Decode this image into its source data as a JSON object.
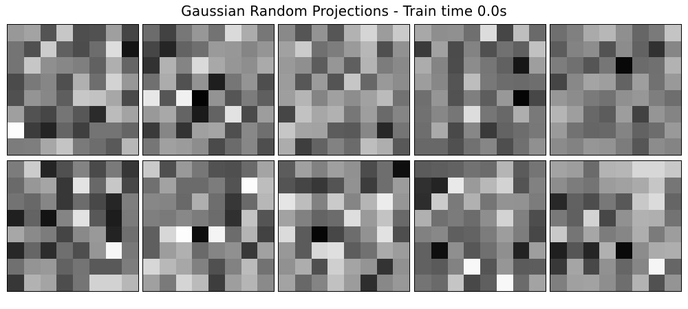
{
  "chart_data": {
    "type": "heatmap",
    "title": "Gaussian Random Projections - Train time 0.0s",
    "colormap": "gray",
    "grid": false,
    "rows": 2,
    "cols": 5,
    "panels": [
      {
        "values": [
          [
            152,
            163,
            84,
            199,
            78,
            81,
            159,
            69
          ],
          [
            116,
            80,
            204,
            96,
            76,
            109,
            221,
            20
          ],
          [
            116,
            198,
            143,
            135,
            127,
            97,
            175,
            101
          ],
          [
            75,
            121,
            134,
            79,
            176,
            110,
            211,
            151
          ],
          [
            80,
            148,
            135,
            94,
            199,
            194,
            167,
            74
          ],
          [
            159,
            82,
            70,
            117,
            87,
            43,
            187,
            163
          ],
          [
            253,
            60,
            36,
            101,
            63,
            116,
            116,
            101
          ],
          [
            124,
            126,
            167,
            196,
            122,
            109,
            89,
            183
          ]
        ]
      },
      {
        "values": [
          [
            108,
            66,
            119,
            151,
            115,
            218,
            172,
            119
          ],
          [
            70,
            37,
            99,
            111,
            154,
            151,
            133,
            149
          ],
          [
            50,
            178,
            132,
            218,
            168,
            150,
            142,
            170
          ],
          [
            112,
            172,
            81,
            147,
            30,
            118,
            148,
            78
          ],
          [
            231,
            86,
            240,
            3,
            147,
            85,
            124,
            95
          ],
          [
            153,
            168,
            100,
            26,
            99,
            226,
            74,
            157
          ],
          [
            58,
            134,
            51,
            160,
            165,
            79,
            136,
            111
          ],
          [
            118,
            160,
            155,
            141,
            74,
            107,
            135,
            78
          ]
        ]
      },
      {
        "values": [
          [
            137,
            85,
            147,
            86,
            178,
            213,
            156,
            202
          ],
          [
            161,
            203,
            112,
            125,
            154,
            183,
            79,
            145
          ],
          [
            153,
            143,
            92,
            150,
            95,
            180,
            124,
            137
          ],
          [
            156,
            87,
            155,
            84,
            198,
            103,
            153,
            140
          ],
          [
            158,
            181,
            132,
            160,
            141,
            161,
            187,
            114
          ],
          [
            70,
            194,
            167,
            177,
            119,
            158,
            106,
            133
          ],
          [
            198,
            164,
            162,
            92,
            89,
            135,
            39,
            117
          ],
          [
            172,
            62,
            99,
            130,
            107,
            190,
            174,
            88
          ]
        ]
      },
      {
        "values": [
          [
            168,
            142,
            144,
            111,
            220,
            70,
            190,
            106
          ],
          [
            59,
            161,
            75,
            131,
            80,
            113,
            96,
            193
          ],
          [
            172,
            132,
            76,
            140,
            118,
            97,
            22,
            158
          ],
          [
            157,
            135,
            84,
            189,
            120,
            108,
            106,
            110
          ],
          [
            111,
            149,
            82,
            127,
            93,
            152,
            5,
            71
          ],
          [
            113,
            135,
            118,
            221,
            118,
            104,
            174,
            121
          ],
          [
            110,
            170,
            73,
            135,
            58,
            99,
            109,
            120
          ],
          [
            104,
            104,
            80,
            113,
            134,
            78,
            112,
            144
          ]
        ]
      },
      {
        "values": [
          [
            111,
            128,
            170,
            183,
            143,
            102,
            122,
            196
          ],
          [
            92,
            131,
            141,
            83,
            140,
            98,
            49,
            134
          ],
          [
            125,
            112,
            85,
            118,
            8,
            107,
            112,
            178
          ],
          [
            69,
            136,
            164,
            158,
            99,
            158,
            113,
            153
          ],
          [
            151,
            140,
            122,
            114,
            144,
            151,
            126,
            110
          ],
          [
            181,
            158,
            104,
            92,
            157,
            66,
            149,
            132
          ],
          [
            154,
            114,
            102,
            104,
            132,
            98,
            109,
            153
          ],
          [
            139,
            130,
            150,
            147,
            124,
            86,
            140,
            132
          ]
        ]
      },
      {
        "values": [
          [
            124,
            204,
            36,
            80,
            131,
            74,
            122,
            54
          ],
          [
            106,
            151,
            165,
            55,
            227,
            104,
            199,
            71
          ],
          [
            115,
            104,
            134,
            55,
            108,
            72,
            38,
            126
          ],
          [
            32,
            99,
            19,
            132,
            226,
            88,
            29,
            123
          ],
          [
            167,
            138,
            124,
            69,
            137,
            153,
            35,
            111
          ],
          [
            40,
            102,
            44,
            111,
            78,
            150,
            246,
            120
          ],
          [
            112,
            148,
            153,
            98,
            116,
            89,
            89,
            125
          ],
          [
            55,
            178,
            164,
            77,
            117,
            210,
            210,
            183
          ]
        ]
      },
      {
        "values": [
          [
            202,
            79,
            153,
            119,
            82,
            79,
            106,
            164
          ],
          [
            112,
            162,
            107,
            107,
            124,
            83,
            252,
            189
          ],
          [
            135,
            132,
            105,
            175,
            110,
            55,
            106,
            183
          ],
          [
            127,
            122,
            136,
            124,
            108,
            48,
            195,
            84
          ],
          [
            95,
            215,
            253,
            13,
            244,
            108,
            180,
            66
          ],
          [
            95,
            157,
            176,
            106,
            133,
            144,
            56,
            161
          ],
          [
            215,
            184,
            167,
            129,
            80,
            130,
            187,
            114
          ],
          [
            160,
            122,
            213,
            187,
            61,
            158,
            181,
            138
          ]
        ]
      },
      {
        "values": [
          [
            92,
            160,
            129,
            159,
            145,
            76,
            110,
            14
          ],
          [
            84,
            69,
            55,
            84,
            146,
            60,
            110,
            156
          ],
          [
            229,
            189,
            129,
            202,
            133,
            181,
            236,
            150
          ],
          [
            162,
            129,
            100,
            108,
            222,
            154,
            195,
            105
          ],
          [
            219,
            91,
            6,
            71,
            109,
            146,
            226,
            78
          ],
          [
            152,
            91,
            215,
            223,
            93,
            113,
            170,
            156
          ],
          [
            145,
            173,
            79,
            207,
            164,
            148,
            51,
            145
          ],
          [
            163,
            104,
            132,
            193,
            156,
            46,
            136,
            152
          ]
        ]
      },
      {
        "values": [
          [
            91,
            94,
            98,
            114,
            107,
            181,
            91,
            117
          ],
          [
            48,
            36,
            233,
            154,
            184,
            211,
            84,
            129
          ],
          [
            45,
            203,
            122,
            177,
            117,
            147,
            146,
            124
          ],
          [
            176,
            112,
            123,
            108,
            142,
            211,
            128,
            77
          ],
          [
            129,
            136,
            95,
            99,
            124,
            157,
            125,
            71
          ],
          [
            97,
            14,
            143,
            87,
            112,
            143,
            34,
            158
          ],
          [
            97,
            90,
            130,
            248,
            85,
            150,
            91,
            93
          ],
          [
            116,
            106,
            197,
            72,
            95,
            248,
            107,
            163
          ]
        ]
      },
      {
        "values": [
          [
            163,
            157,
            107,
            179,
            182,
            215,
            215,
            200
          ],
          [
            141,
            124,
            116,
            156,
            161,
            170,
            198,
            118
          ],
          [
            40,
            97,
            77,
            120,
            88,
            200,
            219,
            101
          ],
          [
            121,
            96,
            211,
            71,
            145,
            177,
            175,
            115
          ],
          [
            201,
            117,
            166,
            124,
            134,
            174,
            123,
            157
          ],
          [
            31,
            86,
            37,
            176,
            9,
            140,
            171,
            174
          ],
          [
            56,
            165,
            72,
            145,
            102,
            134,
            245,
            102
          ],
          [
            127,
            160,
            162,
            142,
            110,
            179,
            81,
            148
          ]
        ]
      }
    ]
  }
}
